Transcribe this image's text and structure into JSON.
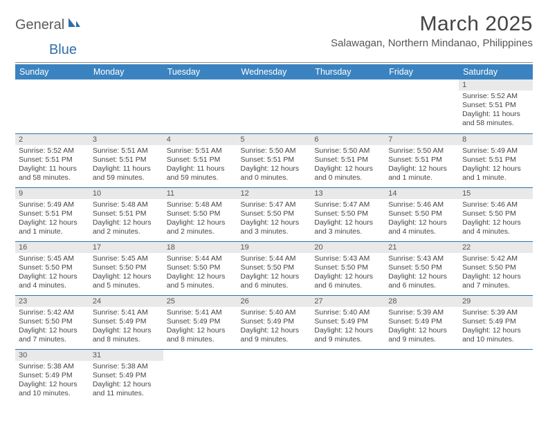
{
  "logo": {
    "part1": "General",
    "part2": "Blue"
  },
  "title": "March 2025",
  "location": "Salawagan, Northern Mindanao, Philippines",
  "header_bg": "#3b83c0",
  "daynum_bg": "#e9e9e9",
  "border_color": "#2f6fa7",
  "weekdays": [
    "Sunday",
    "Monday",
    "Tuesday",
    "Wednesday",
    "Thursday",
    "Friday",
    "Saturday"
  ],
  "weeks": [
    [
      null,
      null,
      null,
      null,
      null,
      null,
      {
        "n": "1",
        "sr": "Sunrise: 5:52 AM",
        "ss": "Sunset: 5:51 PM",
        "dl": "Daylight: 11 hours and 58 minutes."
      }
    ],
    [
      {
        "n": "2",
        "sr": "Sunrise: 5:52 AM",
        "ss": "Sunset: 5:51 PM",
        "dl": "Daylight: 11 hours and 58 minutes."
      },
      {
        "n": "3",
        "sr": "Sunrise: 5:51 AM",
        "ss": "Sunset: 5:51 PM",
        "dl": "Daylight: 11 hours and 59 minutes."
      },
      {
        "n": "4",
        "sr": "Sunrise: 5:51 AM",
        "ss": "Sunset: 5:51 PM",
        "dl": "Daylight: 11 hours and 59 minutes."
      },
      {
        "n": "5",
        "sr": "Sunrise: 5:50 AM",
        "ss": "Sunset: 5:51 PM",
        "dl": "Daylight: 12 hours and 0 minutes."
      },
      {
        "n": "6",
        "sr": "Sunrise: 5:50 AM",
        "ss": "Sunset: 5:51 PM",
        "dl": "Daylight: 12 hours and 0 minutes."
      },
      {
        "n": "7",
        "sr": "Sunrise: 5:50 AM",
        "ss": "Sunset: 5:51 PM",
        "dl": "Daylight: 12 hours and 1 minute."
      },
      {
        "n": "8",
        "sr": "Sunrise: 5:49 AM",
        "ss": "Sunset: 5:51 PM",
        "dl": "Daylight: 12 hours and 1 minute."
      }
    ],
    [
      {
        "n": "9",
        "sr": "Sunrise: 5:49 AM",
        "ss": "Sunset: 5:51 PM",
        "dl": "Daylight: 12 hours and 1 minute."
      },
      {
        "n": "10",
        "sr": "Sunrise: 5:48 AM",
        "ss": "Sunset: 5:51 PM",
        "dl": "Daylight: 12 hours and 2 minutes."
      },
      {
        "n": "11",
        "sr": "Sunrise: 5:48 AM",
        "ss": "Sunset: 5:50 PM",
        "dl": "Daylight: 12 hours and 2 minutes."
      },
      {
        "n": "12",
        "sr": "Sunrise: 5:47 AM",
        "ss": "Sunset: 5:50 PM",
        "dl": "Daylight: 12 hours and 3 minutes."
      },
      {
        "n": "13",
        "sr": "Sunrise: 5:47 AM",
        "ss": "Sunset: 5:50 PM",
        "dl": "Daylight: 12 hours and 3 minutes."
      },
      {
        "n": "14",
        "sr": "Sunrise: 5:46 AM",
        "ss": "Sunset: 5:50 PM",
        "dl": "Daylight: 12 hours and 4 minutes."
      },
      {
        "n": "15",
        "sr": "Sunrise: 5:46 AM",
        "ss": "Sunset: 5:50 PM",
        "dl": "Daylight: 12 hours and 4 minutes."
      }
    ],
    [
      {
        "n": "16",
        "sr": "Sunrise: 5:45 AM",
        "ss": "Sunset: 5:50 PM",
        "dl": "Daylight: 12 hours and 4 minutes."
      },
      {
        "n": "17",
        "sr": "Sunrise: 5:45 AM",
        "ss": "Sunset: 5:50 PM",
        "dl": "Daylight: 12 hours and 5 minutes."
      },
      {
        "n": "18",
        "sr": "Sunrise: 5:44 AM",
        "ss": "Sunset: 5:50 PM",
        "dl": "Daylight: 12 hours and 5 minutes."
      },
      {
        "n": "19",
        "sr": "Sunrise: 5:44 AM",
        "ss": "Sunset: 5:50 PM",
        "dl": "Daylight: 12 hours and 6 minutes."
      },
      {
        "n": "20",
        "sr": "Sunrise: 5:43 AM",
        "ss": "Sunset: 5:50 PM",
        "dl": "Daylight: 12 hours and 6 minutes."
      },
      {
        "n": "21",
        "sr": "Sunrise: 5:43 AM",
        "ss": "Sunset: 5:50 PM",
        "dl": "Daylight: 12 hours and 6 minutes."
      },
      {
        "n": "22",
        "sr": "Sunrise: 5:42 AM",
        "ss": "Sunset: 5:50 PM",
        "dl": "Daylight: 12 hours and 7 minutes."
      }
    ],
    [
      {
        "n": "23",
        "sr": "Sunrise: 5:42 AM",
        "ss": "Sunset: 5:50 PM",
        "dl": "Daylight: 12 hours and 7 minutes."
      },
      {
        "n": "24",
        "sr": "Sunrise: 5:41 AM",
        "ss": "Sunset: 5:49 PM",
        "dl": "Daylight: 12 hours and 8 minutes."
      },
      {
        "n": "25",
        "sr": "Sunrise: 5:41 AM",
        "ss": "Sunset: 5:49 PM",
        "dl": "Daylight: 12 hours and 8 minutes."
      },
      {
        "n": "26",
        "sr": "Sunrise: 5:40 AM",
        "ss": "Sunset: 5:49 PM",
        "dl": "Daylight: 12 hours and 9 minutes."
      },
      {
        "n": "27",
        "sr": "Sunrise: 5:40 AM",
        "ss": "Sunset: 5:49 PM",
        "dl": "Daylight: 12 hours and 9 minutes."
      },
      {
        "n": "28",
        "sr": "Sunrise: 5:39 AM",
        "ss": "Sunset: 5:49 PM",
        "dl": "Daylight: 12 hours and 9 minutes."
      },
      {
        "n": "29",
        "sr": "Sunrise: 5:39 AM",
        "ss": "Sunset: 5:49 PM",
        "dl": "Daylight: 12 hours and 10 minutes."
      }
    ],
    [
      {
        "n": "30",
        "sr": "Sunrise: 5:38 AM",
        "ss": "Sunset: 5:49 PM",
        "dl": "Daylight: 12 hours and 10 minutes."
      },
      {
        "n": "31",
        "sr": "Sunrise: 5:38 AM",
        "ss": "Sunset: 5:49 PM",
        "dl": "Daylight: 12 hours and 11 minutes."
      },
      null,
      null,
      null,
      null,
      null
    ]
  ]
}
